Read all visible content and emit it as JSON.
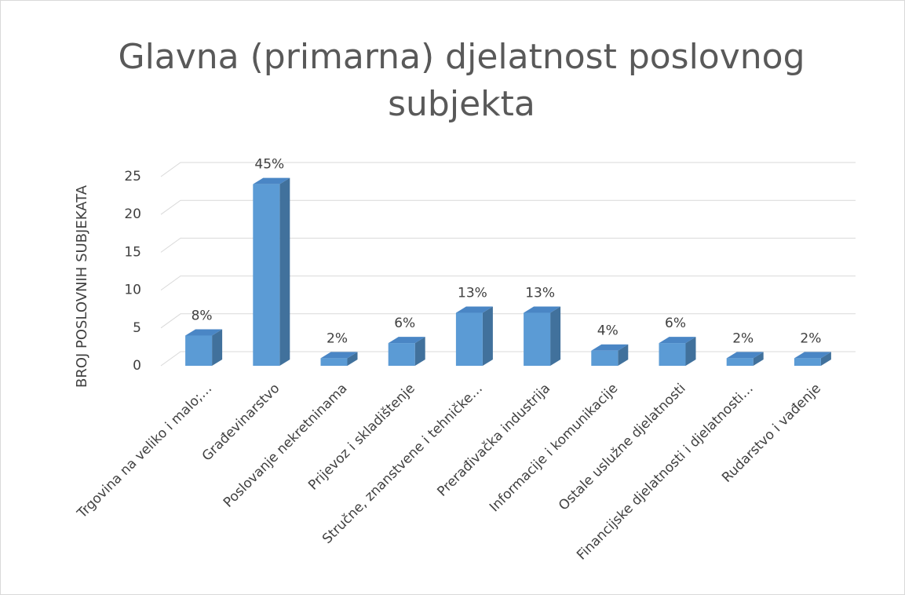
{
  "chart_data": {
    "type": "bar3d",
    "title": "Glavna (primarna) djelatnost poslovnog subjekta",
    "y_label": "BROJ POSLOVNIH SUBJEKATA",
    "categories": [
      "Trgovina na veliko i malo;…",
      "Građevinarstvo",
      "Poslovanje nekretninama",
      "Prijevoz i skladištenje",
      "Stručne, znanstvene i tehničke…",
      "Prerađivačka industrija",
      "Informacije i komunikacije",
      "Ostale uslužne djelatnosti",
      "Financijske djelatnosti i djelatnosti…",
      "Rudarstvo i vađenje"
    ],
    "values": [
      4,
      24,
      1,
      3,
      7,
      7,
      2,
      3,
      1,
      1
    ],
    "share_labels": [
      "8%",
      "45%",
      "2%",
      "6%",
      "13%",
      "13%",
      "4%",
      "6%",
      "2%",
      "2%"
    ],
    "color": "#5b9bd5",
    "ylim": [
      0,
      25
    ],
    "yticks": [
      0,
      5,
      10,
      15,
      20,
      25
    ],
    "grid": true
  }
}
